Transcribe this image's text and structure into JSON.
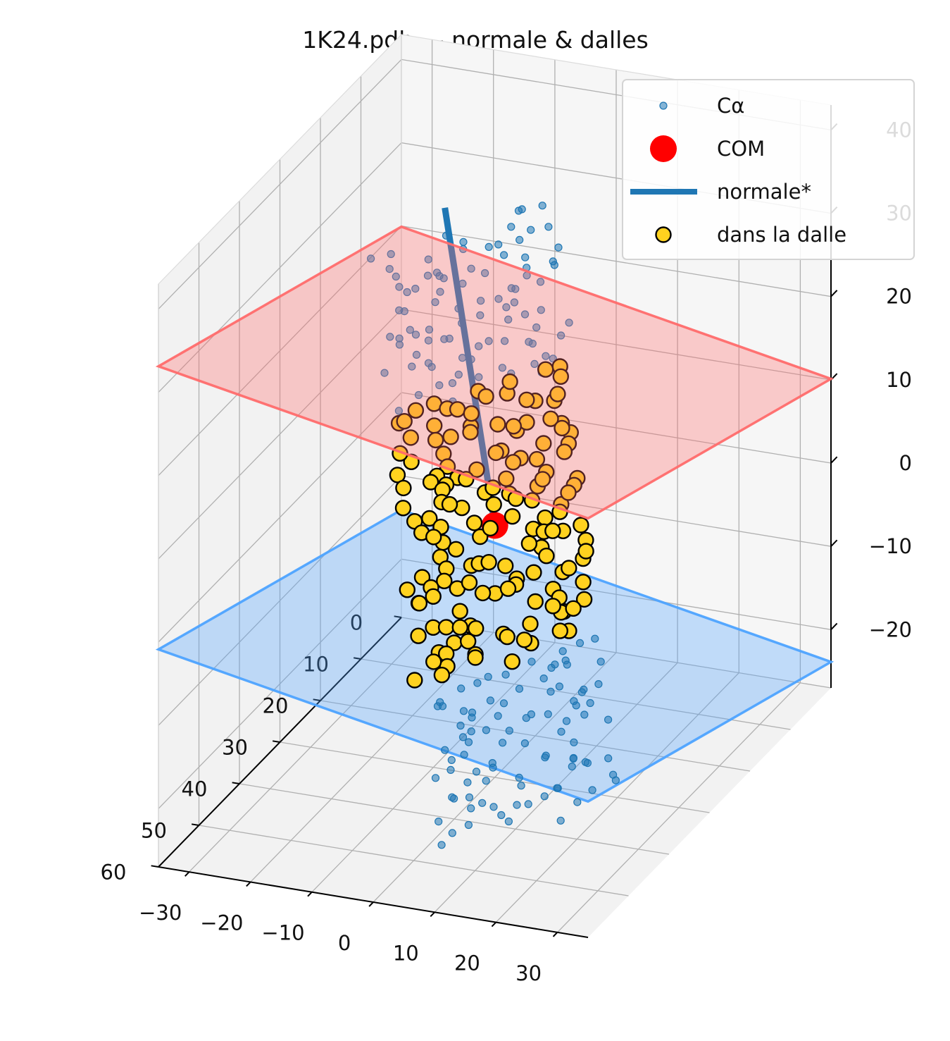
{
  "chart_data": {
    "type": "scatter3d",
    "title": "1K24.pdb — normale & dalles",
    "xlabel": "",
    "ylabel": "",
    "zlabel": "",
    "xlim": [
      0,
      60
    ],
    "ylim": [
      -35,
      35
    ],
    "zlim": [
      -27,
      43
    ],
    "x_ticks": [
      "0",
      "10",
      "20",
      "30",
      "40",
      "50",
      "60"
    ],
    "y_ticks": [
      "−30",
      "−20",
      "−10",
      "0",
      "10",
      "20",
      "30"
    ],
    "z_ticks": [
      "−20",
      "−10",
      "0",
      "10",
      "20",
      "30",
      "40"
    ],
    "grid": true,
    "legend_position": "top-right",
    "legend": [
      {
        "label": "Cα",
        "kind": "small-point",
        "color": "#1f77b4"
      },
      {
        "label": "COM",
        "kind": "large-point",
        "color": "#ff0000"
      },
      {
        "label": "normale*",
        "kind": "line",
        "color": "#1f77b4"
      },
      {
        "label": "dans la dalle",
        "kind": "edged-point",
        "color": "#ffd21f"
      }
    ],
    "com": [
      33,
      2,
      5
    ],
    "normal_line": {
      "from": [
        33,
        2,
        5
      ],
      "to": [
        12,
        -20,
        30
      ]
    },
    "slab_planes": [
      {
        "name": "upper",
        "color": "#ff6b6b",
        "z_offset": 17
      },
      {
        "name": "lower",
        "color": "#4da3ff",
        "z_offset": -17
      }
    ],
    "colors": {
      "ca": "#1f77b4",
      "com": "#ff0000",
      "slab_point": "#ffd21f",
      "upper_plane": "#ff6b6b",
      "lower_plane": "#4da3ff"
    }
  }
}
